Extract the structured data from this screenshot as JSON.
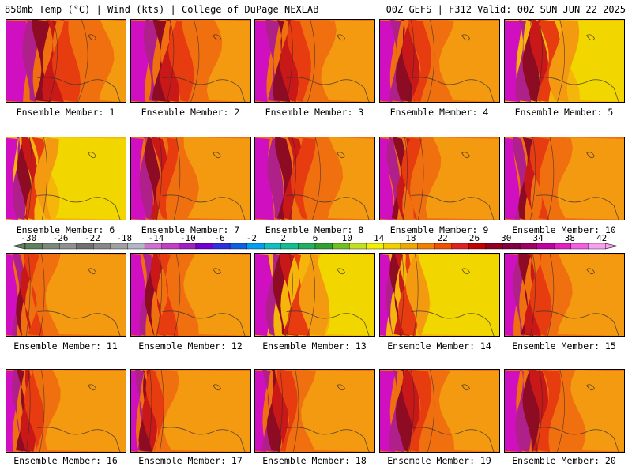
{
  "title_left": "850mb Temp (°C) | Wind (kts) | College of DuPage NEXLAB",
  "title_right": "00Z GEFS | F312 Valid: 00Z SUN JUN 22 2025",
  "members": [
    {
      "label": "Ensemble Member: 1"
    },
    {
      "label": "Ensemble Member: 2"
    },
    {
      "label": "Ensemble Member: 3"
    },
    {
      "label": "Ensemble Member: 4"
    },
    {
      "label": "Ensemble Member: 5"
    },
    {
      "label": "Ensemble Member: 6"
    },
    {
      "label": "Ensemble Member: 7"
    },
    {
      "label": "Ensemble Member: 8"
    },
    {
      "label": "Ensemble Member: 9"
    },
    {
      "label": "Ensemble Member: 10"
    },
    {
      "label": "Ensemble Member: 11"
    },
    {
      "label": "Ensemble Member: 12"
    },
    {
      "label": "Ensemble Member: 13"
    },
    {
      "label": "Ensemble Member: 14"
    },
    {
      "label": "Ensemble Member: 15"
    },
    {
      "label": "Ensemble Member: 16"
    },
    {
      "label": "Ensemble Member: 17"
    },
    {
      "label": "Ensemble Member: 18"
    },
    {
      "label": "Ensemble Member: 19"
    },
    {
      "label": "Ensemble Member: 20"
    }
  ],
  "colorbar": {
    "ticks": [
      "-30",
      "-26",
      "-22",
      "-18",
      "-14",
      "-10",
      "-6",
      "-2",
      "2",
      "6",
      "10",
      "14",
      "18",
      "22",
      "26",
      "30",
      "34",
      "38",
      "42"
    ],
    "colors": [
      "#5f7f5f",
      "#7a8a7a",
      "#909090",
      "#707070",
      "#888888",
      "#a0a0a0",
      "#b0b8c8",
      "#d070d0",
      "#c040c0",
      "#a020c0",
      "#7000d0",
      "#3030e0",
      "#1060e0",
      "#00a0f0",
      "#10c0c0",
      "#10c090",
      "#20b060",
      "#30a030",
      "#70c020",
      "#c0e020",
      "#f0f000",
      "#f0d000",
      "#f0a800",
      "#f08000",
      "#f05000",
      "#e02020",
      "#c00000",
      "#900020",
      "#800040",
      "#a00060",
      "#c000a0",
      "#e020c0",
      "#f060e0",
      "#f8a0f0"
    ]
  }
}
